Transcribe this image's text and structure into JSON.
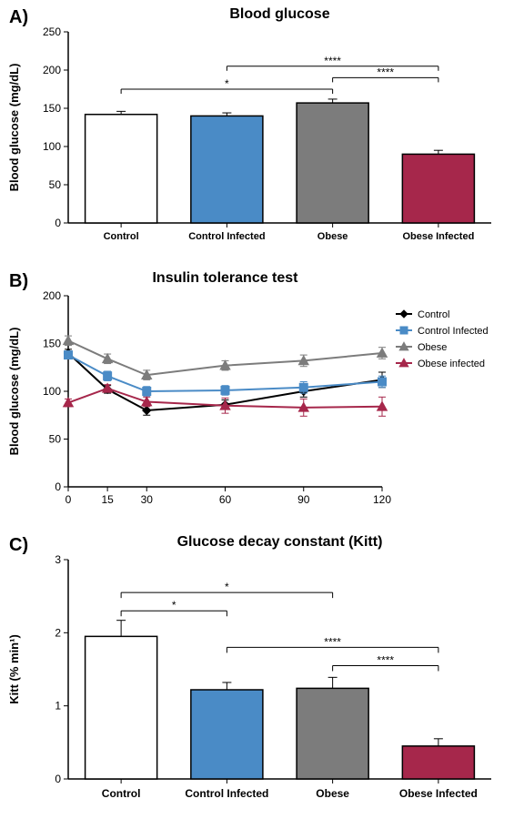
{
  "panelA": {
    "label": "A)",
    "title": "Blood glucose",
    "ylabel": "Blood glucose (mg/dL)",
    "type": "bar",
    "categories": [
      "Control",
      "Control Infected",
      "Obese",
      "Obese Infected"
    ],
    "values": [
      142,
      140,
      157,
      90
    ],
    "errors": [
      4,
      4,
      5,
      5
    ],
    "bar_colors": [
      "#ffffff",
      "#4a8bc6",
      "#7c7c7c",
      "#a6274b"
    ],
    "bar_border": "#000000",
    "ylim": [
      0,
      250
    ],
    "yticks": [
      0,
      50,
      100,
      150,
      200,
      250
    ],
    "bar_width": 0.68,
    "title_fontsize": 16,
    "label_fontsize": 13,
    "tick_fontsize": 12,
    "sig_bars": [
      {
        "from": 0,
        "to": 2,
        "y": 175,
        "label": "*"
      },
      {
        "from": 2,
        "to": 3,
        "y": 190,
        "label": "****"
      },
      {
        "from": 1,
        "to": 3,
        "y": 205,
        "label": "****"
      }
    ]
  },
  "panelB": {
    "label": "B)",
    "title": "Insulin tolerance test",
    "ylabel": "Blood glucose (mg/dL)",
    "type": "line",
    "x": [
      0,
      15,
      30,
      60,
      90,
      120
    ],
    "xlim": [
      0,
      120
    ],
    "ylim": [
      0,
      200
    ],
    "yticks": [
      0,
      50,
      100,
      150,
      200
    ],
    "series": [
      {
        "name": "Control",
        "color": "#000000",
        "marker": "diamond",
        "line": "solid",
        "y": [
          140,
          102,
          80,
          86,
          100,
          112
        ],
        "err": [
          4,
          4,
          5,
          5,
          6,
          8
        ]
      },
      {
        "name": "Control Infected",
        "color": "#4a8bc6",
        "marker": "square",
        "line": "solid",
        "y": [
          138,
          116,
          100,
          101,
          104,
          110
        ],
        "err": [
          4,
          5,
          5,
          5,
          6,
          6
        ]
      },
      {
        "name": "Obese",
        "color": "#7c7c7c",
        "marker": "triangle",
        "line": "solid",
        "y": [
          153,
          134,
          117,
          127,
          132,
          140
        ],
        "err": [
          5,
          5,
          5,
          5,
          6,
          6
        ]
      },
      {
        "name": "Obese infected",
        "color": "#a6274b",
        "marker": "triangle",
        "line": "solid",
        "y": [
          88,
          103,
          89,
          85,
          83,
          84
        ],
        "err": [
          4,
          4,
          5,
          8,
          9,
          10
        ]
      }
    ],
    "title_fontsize": 16,
    "label_fontsize": 13,
    "tick_fontsize": 12,
    "legend_fontsize": 11
  },
  "panelC": {
    "label": "C)",
    "title": "Glucose decay constant (Kitt)",
    "ylabel": "Kitt (% min¹)",
    "type": "bar",
    "categories": [
      "Control",
      "Control Infected",
      "Obese",
      "Obese Infected"
    ],
    "values": [
      1.95,
      1.22,
      1.24,
      0.45
    ],
    "errors": [
      0.22,
      0.1,
      0.15,
      0.1
    ],
    "bar_colors": [
      "#ffffff",
      "#4a8bc6",
      "#7c7c7c",
      "#a6274b"
    ],
    "bar_border": "#000000",
    "ylim": [
      0,
      3
    ],
    "yticks": [
      0,
      1,
      2,
      3
    ],
    "bar_width": 0.68,
    "title_fontsize": 16,
    "label_fontsize": 13,
    "tick_fontsize": 12,
    "sig_bars": [
      {
        "from": 2,
        "to": 3,
        "y": 1.55,
        "label": "****"
      },
      {
        "from": 1,
        "to": 3,
        "y": 1.8,
        "label": "****"
      },
      {
        "from": 0,
        "to": 1,
        "y": 2.3,
        "label": "*"
      },
      {
        "from": 0,
        "to": 2,
        "y": 2.55,
        "label": "*"
      }
    ]
  }
}
